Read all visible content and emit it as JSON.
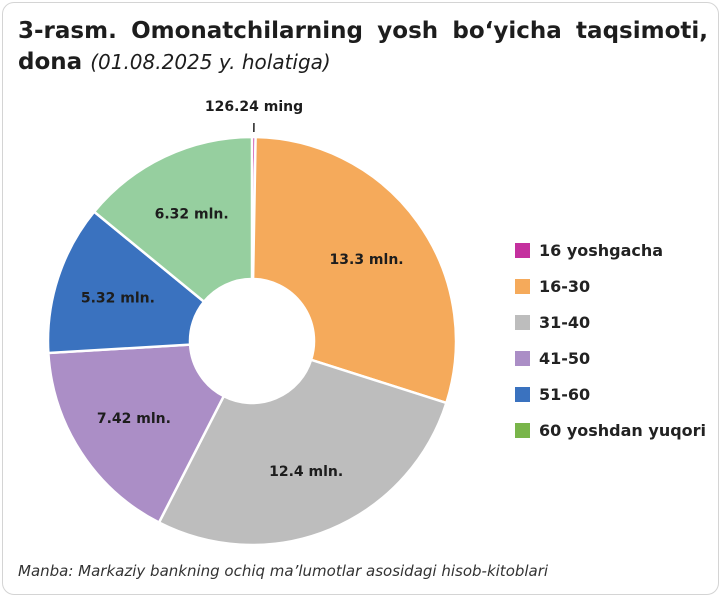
{
  "title": {
    "main": "3-rasm. Omonatchilarning yosh bo‘yicha taqsimoti,",
    "sub": "dona",
    "date": "(01.08.2025 y. holatiga)"
  },
  "source": "Manba: Markaziy bankning ochiq ma’lumotlar asosidagi hisob-kitoblari",
  "chart_data": {
    "type": "pie",
    "donut": true,
    "legend_position": "right",
    "categories": [
      "16 yoshgacha",
      "16-30",
      "31-40",
      "41-50",
      "51-60",
      "60 yoshdan yuqori"
    ],
    "values": [
      0.12624,
      13.3,
      12.4,
      7.42,
      5.32,
      6.32
    ],
    "value_unit": "mln",
    "data_labels": [
      "126.24 ming",
      "13.3 mln.",
      "12.4 mln.",
      "7.42 mln.",
      "5.32 mln.",
      "6.32 mln."
    ],
    "colors": [
      "#c4309e",
      "#f5aa5b",
      "#bdbdbd",
      "#ab8ec6",
      "#3a72bf",
      "#96cf9f"
    ],
    "legend_colors": [
      "#c4309e",
      "#f5aa5b",
      "#bdbdbd",
      "#ab8ec6",
      "#3a72bf",
      "#79b54a"
    ]
  }
}
